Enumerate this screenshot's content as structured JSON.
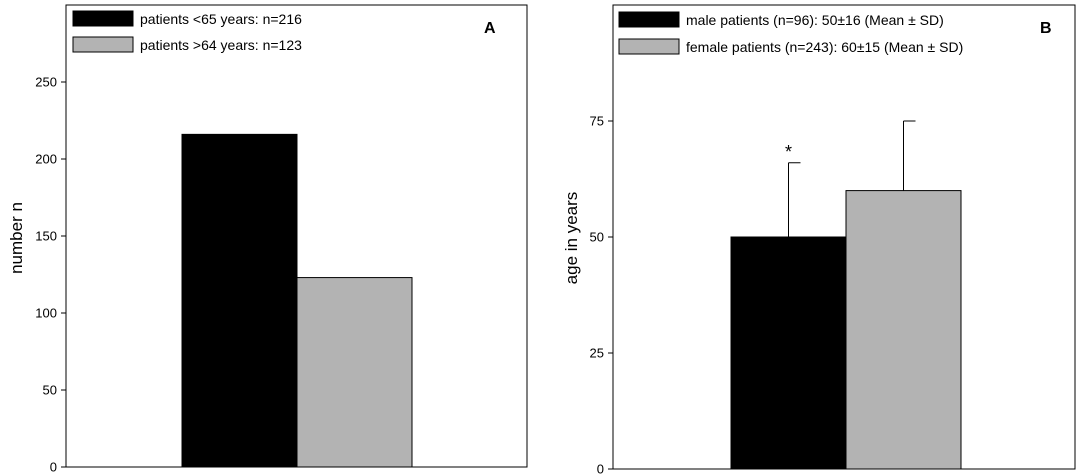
{
  "chart_data": [
    {
      "type": "bar",
      "panel_label": "A",
      "ylabel": "number n",
      "ylim": [
        0,
        300
      ],
      "yticks": [
        0,
        50,
        100,
        150,
        200,
        250
      ],
      "legend_placement": "top-left",
      "series": [
        {
          "name": "patients <65 years: n=216",
          "value": 216,
          "color": "#000000"
        },
        {
          "name": "patients >64 years: n=123",
          "value": 123,
          "color": "#b3b3b3"
        }
      ]
    },
    {
      "type": "bar",
      "panel_label": "B",
      "ylabel": "age in years",
      "ylim": [
        0,
        100
      ],
      "yticks": [
        0,
        25,
        50,
        75
      ],
      "legend_placement": "top-left",
      "series": [
        {
          "name": "male patients (n=96): 50±16 (Mean ± SD)",
          "value": 50,
          "error": 16,
          "color": "#000000",
          "annotation": "*"
        },
        {
          "name": "female patients (n=243): 60±15 (Mean ± SD)",
          "value": 60,
          "error": 15,
          "color": "#b3b3b3",
          "annotation": ""
        }
      ]
    }
  ]
}
